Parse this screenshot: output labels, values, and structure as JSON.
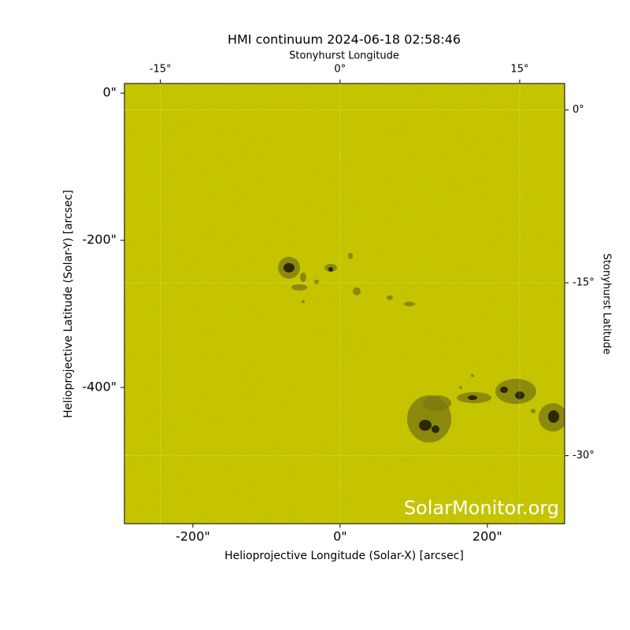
{
  "chart_data": {
    "type": "image",
    "title": "HMI continuum 2024-06-18 02:58:46",
    "xlabel": "Helioprojective Longitude (Solar-X) [arcsec]",
    "ylabel": "Helioprojective Latitude (Solar-Y) [arcsec]",
    "x2label": "Stonyhurst Longitude",
    "y2label": "Stonyhurst Latitude",
    "watermark": "SolarMonitor.org",
    "color": "#c9c800",
    "grid": true,
    "xlim": [
      -293,
      305
    ],
    "ylim": [
      -585,
      13
    ],
    "xticks": [
      {
        "value": -200,
        "label": "-200\""
      },
      {
        "value": 0,
        "label": "0\""
      },
      {
        "value": 200,
        "label": "200\""
      }
    ],
    "yticks": [
      {
        "value": 0,
        "label": "0\""
      },
      {
        "value": -200,
        "label": "-200\""
      },
      {
        "value": -400,
        "label": "-400\""
      }
    ],
    "x2lim": [
      -18,
      18.75
    ],
    "x2ticks": [
      {
        "value": -15,
        "label": "-15°"
      },
      {
        "value": 0,
        "label": "0°"
      },
      {
        "value": 15,
        "label": "15°"
      }
    ],
    "y2lim": [
      2.3,
      -35.9
    ],
    "y2ticks": [
      {
        "value": 0,
        "label": "0°"
      },
      {
        "value": -15,
        "label": "-15°"
      },
      {
        "value": -30,
        "label": "-30°"
      }
    ]
  }
}
